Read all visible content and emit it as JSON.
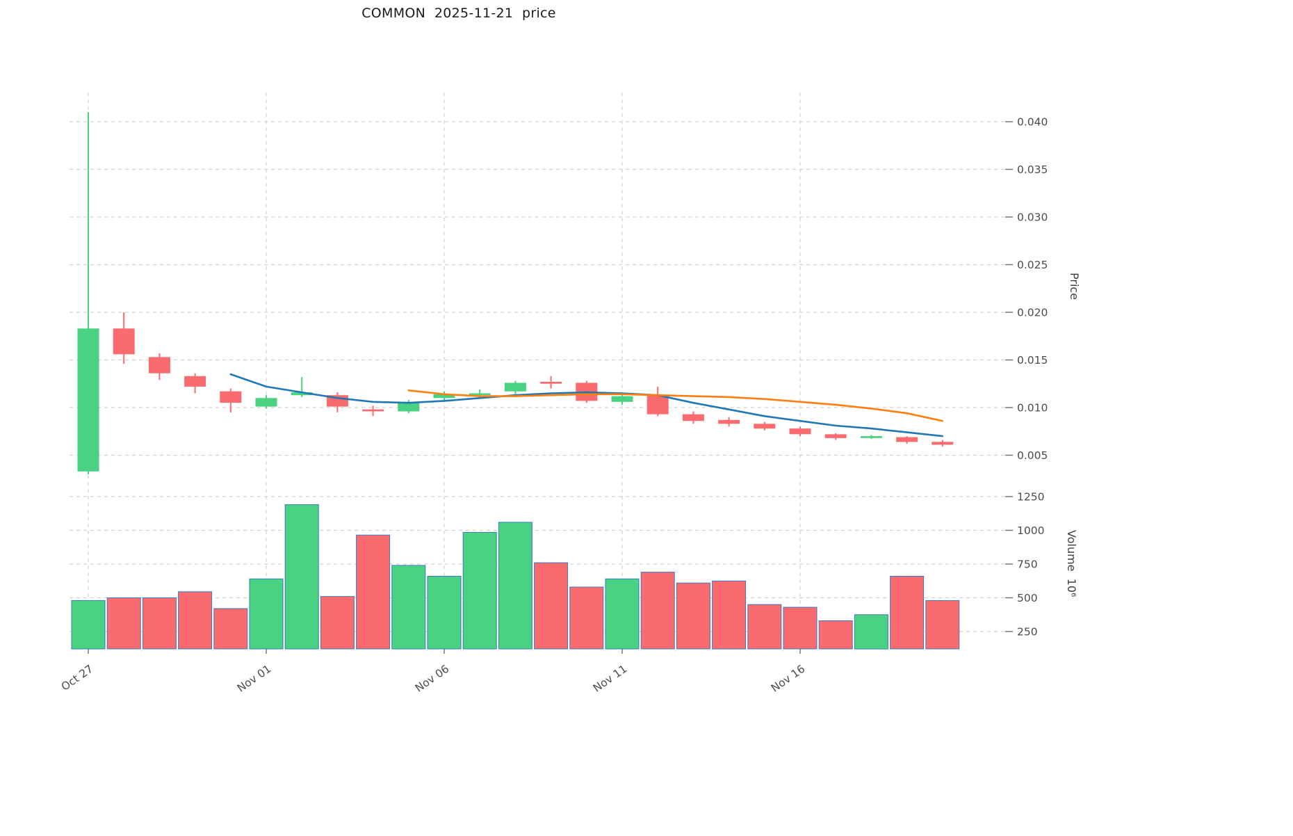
{
  "title": "COMMON  2025-11-21  price",
  "colors": {
    "up": "#48d282",
    "down": "#f96b6f",
    "volume_edge": "#3b7bbf",
    "ma_short": "#1f77b4",
    "ma_long": "#ff7f0e",
    "grid": "#d2d2d2",
    "tick_text": "#4b4b4b",
    "title_text": "#1a1a1a"
  },
  "axes": {
    "price_label": "Price",
    "volume_label": "Volume  10⁶",
    "price_ticks": [
      0.04,
      0.035,
      0.03,
      0.025,
      0.02,
      0.015,
      0.01,
      0.005
    ],
    "volume_ticks": [
      1250,
      1000,
      750,
      500,
      250
    ],
    "x_tick_labels": [
      "Oct 27",
      "Nov 01",
      "Nov 06",
      "Nov 11",
      "Nov 16"
    ],
    "x_tick_indices": [
      0,
      5,
      10,
      15,
      20
    ]
  },
  "chart_data": {
    "type": "candlestick+volume",
    "title": "COMMON  2025-11-21  price",
    "ylabel": "Price",
    "ylabel_lower": "Volume 10^6",
    "price_ylim": [
      0.0022,
      0.0431
    ],
    "volume_ylim": [
      120,
      1320
    ],
    "grid": "dashed",
    "dates": [
      "2025-10-27",
      "2025-10-28",
      "2025-10-29",
      "2025-10-30",
      "2025-10-31",
      "2025-11-01",
      "2025-11-02",
      "2025-11-03",
      "2025-11-04",
      "2025-11-05",
      "2025-11-06",
      "2025-11-07",
      "2025-11-08",
      "2025-11-09",
      "2025-11-10",
      "2025-11-11",
      "2025-11-12",
      "2025-11-13",
      "2025-11-14",
      "2025-11-15",
      "2025-11-16",
      "2025-11-17",
      "2025-11-18",
      "2025-11-19",
      "2025-11-20"
    ],
    "ohlc": [
      [
        0.0033,
        0.041,
        0.003,
        0.0183
      ],
      [
        0.0183,
        0.02,
        0.0146,
        0.0156
      ],
      [
        0.0153,
        0.0157,
        0.0129,
        0.0136
      ],
      [
        0.0133,
        0.0136,
        0.0115,
        0.0122
      ],
      [
        0.0117,
        0.012,
        0.0095,
        0.0105
      ],
      [
        0.0101,
        0.0113,
        0.0099,
        0.011
      ],
      [
        0.0113,
        0.0132,
        0.0111,
        0.0116
      ],
      [
        0.0113,
        0.0116,
        0.0095,
        0.0101
      ],
      [
        0.0098,
        0.0102,
        0.0091,
        0.0096
      ],
      [
        0.0096,
        0.0108,
        0.0094,
        0.0106
      ],
      [
        0.011,
        0.0117,
        0.0107,
        0.0114
      ],
      [
        0.0114,
        0.0119,
        0.011,
        0.0115
      ],
      [
        0.0117,
        0.0128,
        0.0114,
        0.0126
      ],
      [
        0.0127,
        0.0133,
        0.012,
        0.0125
      ],
      [
        0.0126,
        0.0128,
        0.0105,
        0.0107
      ],
      [
        0.0106,
        0.0113,
        0.0103,
        0.0112
      ],
      [
        0.0113,
        0.0122,
        0.0091,
        0.0093
      ],
      [
        0.0093,
        0.0096,
        0.0083,
        0.0086
      ],
      [
        0.0087,
        0.009,
        0.008,
        0.0083
      ],
      [
        0.0083,
        0.0085,
        0.0076,
        0.0078
      ],
      [
        0.0078,
        0.008,
        0.007,
        0.0072
      ],
      [
        0.0072,
        0.0073,
        0.0066,
        0.0068
      ],
      [
        0.0068,
        0.0071,
        0.0067,
        0.007
      ],
      [
        0.0069,
        0.007,
        0.0062,
        0.0064
      ],
      [
        0.0064,
        0.0066,
        0.0059,
        0.0061
      ]
    ],
    "volume": [
      480,
      500,
      500,
      545,
      420,
      640,
      1190,
      510,
      965,
      740,
      660,
      985,
      1060,
      760,
      580,
      640,
      690,
      610,
      625,
      450,
      430,
      330,
      375,
      660,
      480
    ],
    "ma_short": {
      "name": "moving-average-short",
      "start_index": 4,
      "values": [
        0.0135,
        0.0122,
        0.0116,
        0.011,
        0.0106,
        0.0105,
        0.0107,
        0.011,
        0.0113,
        0.0115,
        0.0116,
        0.0115,
        0.0113,
        0.0105,
        0.0098,
        0.0091,
        0.0086,
        0.0081,
        0.0078,
        0.0074,
        0.007
      ]
    },
    "ma_long": {
      "name": "moving-average-long",
      "start_index": 9,
      "values": [
        0.0118,
        0.0114,
        0.0112,
        0.0112,
        0.0113,
        0.0114,
        0.0114,
        0.0113,
        0.0112,
        0.0111,
        0.0109,
        0.0106,
        0.0103,
        0.0099,
        0.0094,
        0.0086
      ]
    }
  }
}
